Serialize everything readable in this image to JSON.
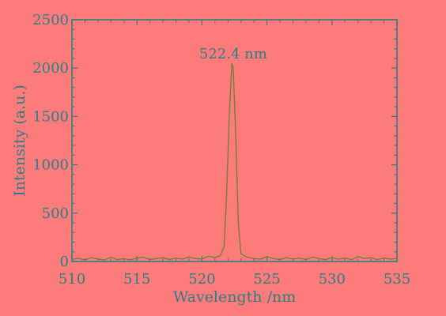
{
  "colors": {
    "background": "#fe7b7b",
    "axis": "#2a7f84",
    "text": "#2a7f84",
    "line": "#6f7f44"
  },
  "chart_data": {
    "type": "line",
    "xlabel": "Wavelength /nm",
    "ylabel": "Intensity (a.u.)",
    "xlim": [
      510,
      535
    ],
    "ylim": [
      0,
      2500
    ],
    "x_ticks": [
      510,
      515,
      520,
      525,
      530,
      535
    ],
    "y_ticks": [
      0,
      500,
      1000,
      1500,
      2000,
      2500
    ],
    "x_tick_labels": [
      "510",
      "515",
      "520",
      "525",
      "530",
      "535"
    ],
    "y_tick_labels": [
      "0",
      "500",
      "1000",
      "1500",
      "2000",
      "2500"
    ],
    "annotation": {
      "text": "522.4 nm",
      "x": 522.4,
      "y": 2150
    },
    "grid": false,
    "series": [
      {
        "x": [
          510.0,
          510.5,
          511.0,
          511.5,
          512.0,
          512.5,
          513.0,
          513.5,
          514.0,
          514.5,
          515.0,
          515.5,
          516.0,
          516.5,
          517.0,
          517.5,
          518.0,
          518.5,
          519.0,
          519.5,
          520.0,
          520.5,
          521.0,
          521.4,
          521.7,
          521.9,
          522.1,
          522.3,
          522.4,
          522.6,
          522.8,
          523.0,
          523.3,
          523.6,
          524.0,
          524.5,
          525.0,
          525.5,
          526.0,
          526.5,
          527.0,
          527.5,
          528.0,
          528.5,
          529.0,
          529.5,
          530.0,
          530.5,
          531.0,
          531.5,
          532.0,
          532.5,
          533.0,
          533.5,
          534.0,
          534.5,
          535.0
        ],
        "values": [
          20,
          35,
          15,
          40,
          25,
          15,
          45,
          20,
          30,
          15,
          35,
          45,
          20,
          30,
          40,
          20,
          35,
          25,
          45,
          30,
          25,
          55,
          40,
          60,
          150,
          700,
          1500,
          2050,
          2000,
          1300,
          400,
          80,
          55,
          40,
          30,
          25,
          50,
          30,
          20,
          40,
          25,
          35,
          20,
          45,
          30,
          20,
          40,
          25,
          35,
          20,
          50,
          30,
          40,
          20,
          35,
          25,
          30
        ]
      }
    ]
  }
}
